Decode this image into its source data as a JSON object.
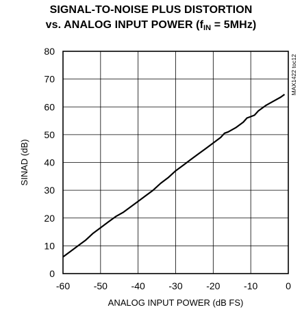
{
  "chart_data": {
    "type": "line",
    "title_line1": "SIGNAL-TO-NOISE PLUS DISTORTION",
    "title_line2_prefix": "vs. ANALOG INPUT POWER (f",
    "title_line2_sub": "IN",
    "title_line2_suffix": " = 5MHz)",
    "xlabel": "ANALOG INPUT POWER (dB FS)",
    "ylabel": "SINAD (dB)",
    "figure_code": "MAX1422 toc12",
    "xlim": [
      -60,
      0
    ],
    "ylim": [
      0,
      80
    ],
    "xticks": [
      "-60",
      "-50",
      "-40",
      "-30",
      "-20",
      "-10",
      "0"
    ],
    "yticks": [
      "0",
      "10",
      "20",
      "30",
      "40",
      "50",
      "60",
      "70",
      "80"
    ],
    "grid": true,
    "series": [
      {
        "color": "#000000",
        "x": [
          -60,
          -58,
          -56,
          -54,
          -52,
          -50,
          -48,
          -46,
          -44,
          -42,
          -40,
          -38,
          -36,
          -34,
          -32,
          -30,
          -28,
          -26,
          -24,
          -22,
          -20,
          -18,
          -17,
          -16,
          -14,
          -12,
          -11,
          -10,
          -9,
          -8,
          -6,
          -4,
          -2,
          -1
        ],
        "y": [
          6,
          8,
          10,
          12,
          14.5,
          16.5,
          18.5,
          20.5,
          22,
          24,
          26,
          28,
          30,
          32.5,
          34.5,
          37,
          39,
          41,
          43,
          45,
          47,
          49,
          50.5,
          51,
          52.5,
          54.5,
          56,
          56.5,
          57,
          58.5,
          60.5,
          62,
          63.5,
          64.5
        ]
      }
    ]
  }
}
